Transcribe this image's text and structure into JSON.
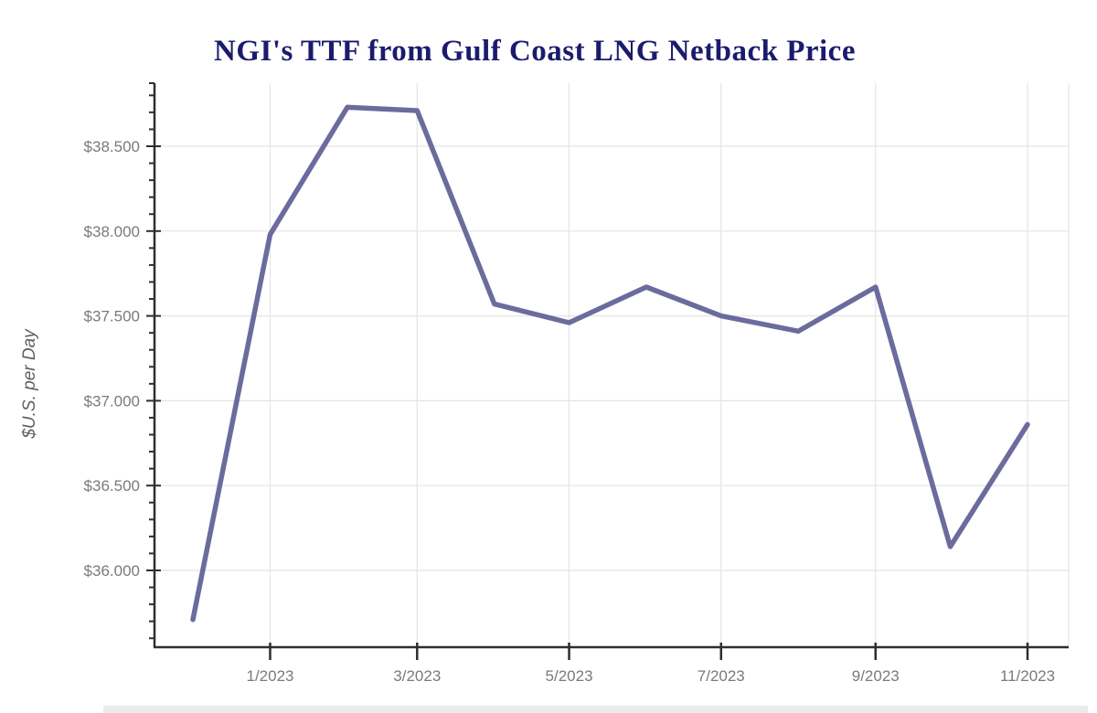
{
  "chart_data": {
    "type": "line",
    "title": "NGI's TTF from Gulf Coast LNG Netback Price",
    "xlabel": "",
    "ylabel": "$U.S. per Day",
    "x": [
      "12/2022",
      "1/2023",
      "2/2023",
      "3/2023",
      "4/2023",
      "5/2023",
      "6/2023",
      "7/2023",
      "8/2023",
      "9/2023",
      "10/2023",
      "11/2023"
    ],
    "values": [
      35.71,
      37.98,
      38.73,
      38.71,
      37.57,
      37.46,
      37.67,
      37.5,
      37.41,
      37.67,
      36.14,
      36.86
    ],
    "ylim": [
      35.55,
      38.87
    ],
    "y_ticks": [
      {
        "label": "$38.500",
        "value": 38.5
      },
      {
        "label": "$38.000",
        "value": 38.0
      },
      {
        "label": "$37.500",
        "value": 37.5
      },
      {
        "label": "$37.000",
        "value": 37.0
      },
      {
        "label": "$36.500",
        "value": 36.5
      },
      {
        "label": "$36.000",
        "value": 36.0
      }
    ],
    "y_minor_tick_step": 0.1,
    "x_ticks": [
      {
        "label": "1/2023"
      },
      {
        "label": "3/2023"
      },
      {
        "label": "5/2023"
      },
      {
        "label": "7/2023"
      },
      {
        "label": "9/2023"
      },
      {
        "label": "11/2023"
      }
    ],
    "grid": "on",
    "legend": "none",
    "colors": {
      "line": "#6b6b9d",
      "title": "#1b1b6e",
      "tick_text": "#7a7a7a",
      "axis_title_text": "#606060",
      "axis_line": "#2e2e2e",
      "gridline": "#e4e4e4",
      "background": "#ffffff",
      "bottom_strip": "#ebebeb"
    }
  }
}
